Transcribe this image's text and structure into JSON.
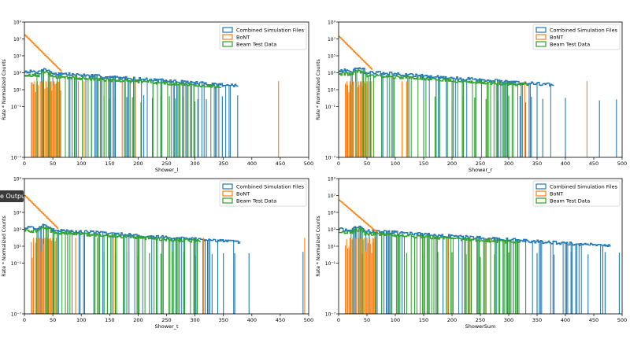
{
  "overlay": {
    "label": "e Output"
  },
  "colors": {
    "combined": "#1f77b4",
    "bont": "#ff7f0e",
    "beam": "#2ca02c"
  },
  "chart_data": [
    {
      "type": "histogram",
      "xlabel": "Shower_l",
      "ylabel": "Rate * Normalized Counts",
      "xlim": [
        0,
        500
      ],
      "ylim": [
        1e-07,
        1000000000.0
      ],
      "yscale": "log",
      "xticks": [
        "0",
        "50",
        "100",
        "150",
        "200",
        "250",
        "300",
        "350",
        "400",
        "450",
        "500"
      ],
      "yticks": [
        "10⁻¹",
        "10¹",
        "10³",
        "10⁵",
        "10⁷",
        "10⁹"
      ],
      "legend": "top-right",
      "series": [
        {
          "name": "Combined Simulation Files",
          "head": 1500,
          "decay": 0.0105,
          "floor": 0.02,
          "fill": 0.25,
          "fill_to": 375,
          "spikes": [
            160,
            180,
            210,
            305,
            320,
            348,
            375
          ]
        },
        {
          "name": "BoNT",
          "head": 30000000,
          "decay": 0.07,
          "floor": 0.5,
          "fill": 0,
          "fill_to": 65,
          "spikes": [
            18,
            23,
            28,
            33,
            38,
            42,
            47,
            52,
            57,
            62,
            95,
            105,
            172,
            178,
            195,
            447
          ]
        },
        {
          "name": "Beam Test Data",
          "head": 600,
          "decay": 0.0095,
          "floor": 0.05,
          "fill": 0.3,
          "fill_to": 345,
          "spikes": [
            140,
            150,
            190,
            205,
            225,
            240,
            255,
            265,
            280,
            300
          ]
        }
      ]
    },
    {
      "type": "histogram",
      "xlabel": "Shower_r",
      "ylabel": "Rate * Normalized Counts",
      "xlim": [
        0,
        500
      ],
      "ylim": [
        1e-07,
        1000000000.0
      ],
      "yscale": "log",
      "xticks": [
        "0",
        "50",
        "100",
        "150",
        "200",
        "250",
        "300",
        "350",
        "400",
        "450",
        "500"
      ],
      "yticks": [
        "10⁻¹",
        "10¹",
        "10³",
        "10⁵",
        "10⁷",
        "10⁹"
      ],
      "legend": "top-right",
      "series": [
        {
          "name": "Combined Simulation Files",
          "head": 2000,
          "decay": 0.0105,
          "floor": 0.02,
          "fill": 0.25,
          "fill_to": 380,
          "spikes": [
            320,
            340,
            360,
            400,
            460,
            490
          ]
        },
        {
          "name": "BoNT",
          "head": 20000000,
          "decay": 0.07,
          "floor": 0.5,
          "fill": 0,
          "fill_to": 60,
          "spikes": [
            15,
            20,
            25,
            30,
            35,
            40,
            45,
            50,
            55,
            112,
            120,
            262,
            328,
            438
          ]
        },
        {
          "name": "Beam Test Data",
          "head": 800,
          "decay": 0.0095,
          "floor": 0.05,
          "fill": 0.3,
          "fill_to": 335,
          "spikes": [
            150,
            170,
            200,
            220,
            240,
            260,
            280,
            300,
            330
          ]
        }
      ]
    },
    {
      "type": "histogram",
      "xlabel": "Shower_t",
      "ylabel": "Rate * Normalized Counts",
      "xlim": [
        0,
        500
      ],
      "ylim": [
        1e-07,
        1000000000.0
      ],
      "yscale": "log",
      "xticks": [
        "0",
        "50",
        "100",
        "150",
        "200",
        "250",
        "300",
        "350",
        "400",
        "450",
        "500"
      ],
      "yticks": [
        "10⁻¹",
        "10¹",
        "10³",
        "10⁵",
        "10⁷",
        "10⁹"
      ],
      "legend": "top-right",
      "series": [
        {
          "name": "Combined Simulation Files",
          "head": 1500,
          "decay": 0.0105,
          "floor": 0.02,
          "fill": 0.25,
          "fill_to": 380,
          "spikes": [
            300,
            330,
            350,
            370,
            395,
            490
          ]
        },
        {
          "name": "BoNT",
          "head": 10000000,
          "decay": 0.07,
          "floor": 0.5,
          "fill": 0,
          "fill_to": 60,
          "spikes": [
            16,
            21,
            26,
            31,
            36,
            41,
            46,
            51,
            56,
            90,
            128,
            157,
            175,
            315,
            493
          ]
        },
        {
          "name": "Beam Test Data",
          "head": 700,
          "decay": 0.0095,
          "floor": 0.05,
          "fill": 0.3,
          "fill_to": 310,
          "spikes": [
            140,
            160,
            180,
            200,
            220,
            240,
            260,
            280,
            300
          ]
        }
      ]
    },
    {
      "type": "histogram",
      "xlabel": "ShowerSum",
      "ylabel": "Rate * Normalized Counts",
      "xlim": [
        0,
        500
      ],
      "ylim": [
        1e-07,
        1000000000.0
      ],
      "yscale": "log",
      "xticks": [
        "0",
        "50",
        "100",
        "150",
        "200",
        "250",
        "300",
        "350",
        "400",
        "450",
        "500"
      ],
      "yticks": [
        "10⁻¹",
        "10¹",
        "10³",
        "10⁵",
        "10⁷",
        "10⁹"
      ],
      "legend": "top-right",
      "series": [
        {
          "name": "Combined Simulation Files",
          "head": 1000,
          "decay": 0.0095,
          "floor": 0.02,
          "fill": 0.25,
          "fill_to": 480,
          "spikes": [
            350,
            380,
            410,
            440,
            470,
            495
          ]
        },
        {
          "name": "BoNT",
          "head": 3000000,
          "decay": 0.06,
          "floor": 0.5,
          "fill": 0,
          "fill_to": 70,
          "spikes": [
            20,
            25,
            30,
            35,
            40,
            45,
            50,
            55,
            60,
            65,
            192,
            232,
            258,
            268
          ]
        },
        {
          "name": "Beam Test Data",
          "head": 500,
          "decay": 0.009,
          "floor": 0.05,
          "fill": 0.3,
          "fill_to": 320,
          "spikes": [
            120,
            150,
            175,
            200,
            225,
            250,
            275,
            300
          ]
        }
      ]
    }
  ]
}
